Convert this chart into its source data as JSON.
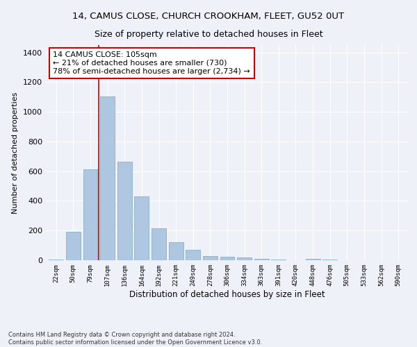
{
  "title1": "14, CAMUS CLOSE, CHURCH CROOKHAM, FLEET, GU52 0UT",
  "title2": "Size of property relative to detached houses in Fleet",
  "xlabel": "Distribution of detached houses by size in Fleet",
  "ylabel": "Number of detached properties",
  "categories": [
    "22sqm",
    "50sqm",
    "79sqm",
    "107sqm",
    "136sqm",
    "164sqm",
    "192sqm",
    "221sqm",
    "249sqm",
    "278sqm",
    "306sqm",
    "334sqm",
    "363sqm",
    "391sqm",
    "420sqm",
    "448sqm",
    "476sqm",
    "505sqm",
    "533sqm",
    "562sqm",
    "590sqm"
  ],
  "values": [
    5,
    190,
    615,
    1105,
    665,
    430,
    215,
    120,
    70,
    30,
    25,
    20,
    10,
    5,
    0,
    10,
    5,
    0,
    0,
    0,
    0
  ],
  "bar_color": "#aec6df",
  "bar_edge_color": "#8aafc8",
  "vline_x_index": 3,
  "vline_color": "#cc0000",
  "annotation_text": "14 CAMUS CLOSE: 105sqm\n← 21% of detached houses are smaller (730)\n78% of semi-detached houses are larger (2,734) →",
  "annotation_box_color": "#ffffff",
  "annotation_box_edge": "#cc0000",
  "ylim": [
    0,
    1450
  ],
  "yticks": [
    0,
    200,
    400,
    600,
    800,
    1000,
    1200,
    1400
  ],
  "footnote": "Contains HM Land Registry data © Crown copyright and database right 2024.\nContains public sector information licensed under the Open Government Licence v3.0.",
  "bg_color": "#eef2f8",
  "grid_color": "#ffffff",
  "title1_fontsize": 9.5,
  "title2_fontsize": 9
}
